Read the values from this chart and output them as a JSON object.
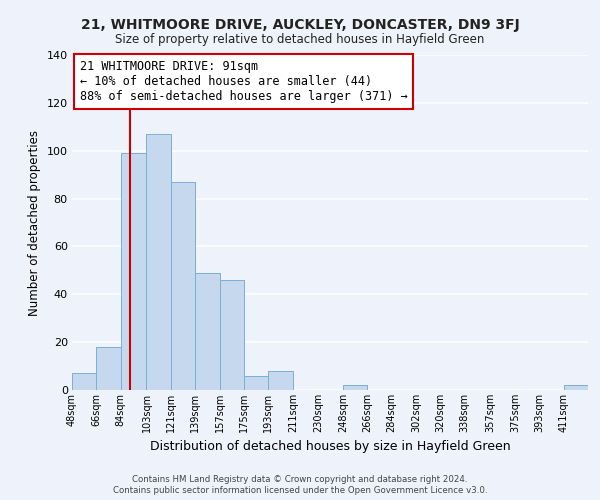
{
  "title1": "21, WHITMOORE DRIVE, AUCKLEY, DONCASTER, DN9 3FJ",
  "title2": "Size of property relative to detached houses in Hayfield Green",
  "xlabel": "Distribution of detached houses by size in Hayfield Green",
  "ylabel": "Number of detached properties",
  "bar_labels": [
    "48sqm",
    "66sqm",
    "84sqm",
    "103sqm",
    "121sqm",
    "139sqm",
    "157sqm",
    "175sqm",
    "193sqm",
    "211sqm",
    "230sqm",
    "248sqm",
    "266sqm",
    "284sqm",
    "302sqm",
    "320sqm",
    "338sqm",
    "357sqm",
    "375sqm",
    "393sqm",
    "411sqm"
  ],
  "bar_values": [
    7,
    18,
    99,
    107,
    87,
    49,
    46,
    6,
    8,
    0,
    0,
    2,
    0,
    0,
    0,
    0,
    0,
    0,
    0,
    0,
    2
  ],
  "bar_color": "#c5d8ee",
  "bar_edge_color": "#7aafd4",
  "property_line_x": 91,
  "property_line_color": "#cc0000",
  "annotation_box_text": "21 WHITMOORE DRIVE: 91sqm\n← 10% of detached houses are smaller (44)\n88% of semi-detached houses are larger (371) →",
  "ylim": [
    0,
    140
  ],
  "yticks": [
    0,
    20,
    40,
    60,
    80,
    100,
    120,
    140
  ],
  "footer1": "Contains HM Land Registry data © Crown copyright and database right 2024.",
  "footer2": "Contains public sector information licensed under the Open Government Licence v3.0.",
  "bg_color": "#eef2fa",
  "grid_color": "#ffffff",
  "bin_edges": [
    48,
    66,
    84,
    103,
    121,
    139,
    157,
    175,
    193,
    211,
    230,
    248,
    266,
    284,
    302,
    320,
    338,
    357,
    375,
    393,
    411,
    429
  ]
}
